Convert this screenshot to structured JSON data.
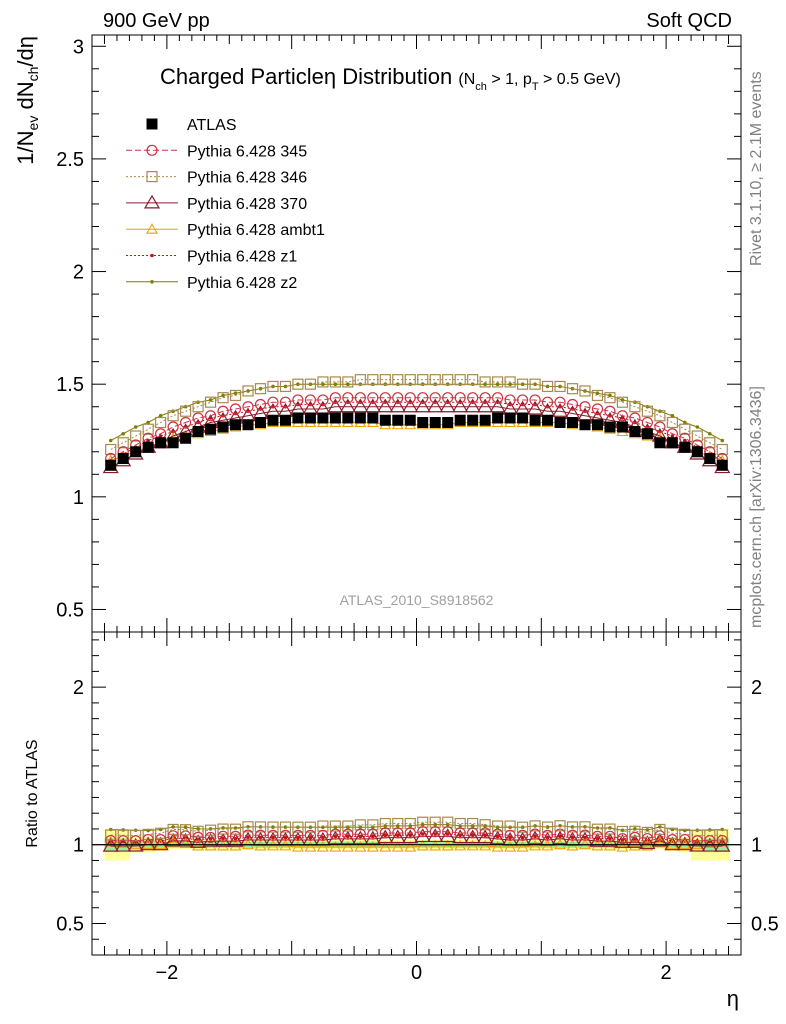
{
  "header": {
    "left": "900 GeV pp",
    "right": "Soft QCD"
  },
  "side_labels": {
    "rivet": "Rivet 3.1.10, ≥ 2.1M events",
    "mcplots": "mcplots.cern.ch [arXiv:1306.3436]"
  },
  "colors": {
    "ATLAS": "#000000",
    "p345": "#cc3344",
    "p346": "#a88a50",
    "p370": "#8b1a2a",
    "ambt1": "#f0a000",
    "z1": "#cc1111",
    "z2": "#7f7f00",
    "band_outer": "#ffff99",
    "band_inner": "#99ee99"
  },
  "chart_data": [
    {
      "type": "scatter",
      "panel": "main",
      "title": "Charged Particleη Distribution",
      "title_sub": "(N",
      "title_sub_ch": "ch",
      "title_mid": " > 1, p",
      "title_sub_T": "T",
      "title_end": " > 0.5 GeV)",
      "ylabel_parts": [
        "1/N",
        "ev",
        " dN",
        "ch",
        "/dη"
      ],
      "xlim": [
        -2.6,
        2.6
      ],
      "ylim": [
        0.4,
        3.05
      ],
      "yticks": [
        0.5,
        1,
        1.5,
        2,
        2.5,
        3
      ],
      "ytick_labels": [
        "0.5",
        "1",
        "1.5",
        "2",
        "2.5",
        "3"
      ],
      "annotation": "ATLAS_2010_S8918562",
      "legend_position": "top-left",
      "x": [
        -2.45,
        -2.35,
        -2.25,
        -2.15,
        -2.05,
        -1.95,
        -1.85,
        -1.75,
        -1.65,
        -1.55,
        -1.45,
        -1.35,
        -1.25,
        -1.15,
        -1.05,
        -0.95,
        -0.85,
        -0.75,
        -0.65,
        -0.55,
        -0.45,
        -0.35,
        -0.25,
        -0.15,
        -0.05,
        0.05,
        0.15,
        0.25,
        0.35,
        0.45,
        0.55,
        0.65,
        0.75,
        0.85,
        0.95,
        1.05,
        1.15,
        1.25,
        1.35,
        1.45,
        1.55,
        1.65,
        1.75,
        1.85,
        1.95,
        2.05,
        2.15,
        2.25,
        2.35,
        2.45
      ],
      "series": [
        {
          "name": "ATLAS",
          "marker": "filled-square",
          "line": "none",
          "color": "#000000",
          "values": [
            1.14,
            1.17,
            1.2,
            1.22,
            1.24,
            1.24,
            1.26,
            1.29,
            1.3,
            1.31,
            1.32,
            1.32,
            1.33,
            1.34,
            1.34,
            1.35,
            1.35,
            1.35,
            1.35,
            1.35,
            1.35,
            1.35,
            1.34,
            1.34,
            1.34,
            1.33,
            1.33,
            1.33,
            1.34,
            1.34,
            1.34,
            1.35,
            1.35,
            1.35,
            1.34,
            1.34,
            1.33,
            1.33,
            1.32,
            1.32,
            1.31,
            1.31,
            1.29,
            1.28,
            1.24,
            1.24,
            1.22,
            1.2,
            1.17,
            1.14
          ]
        },
        {
          "name": "Pythia 6.428 345",
          "marker": "open-circle",
          "line": "dashed",
          "color": "#cc3344",
          "values": [
            1.17,
            1.2,
            1.23,
            1.26,
            1.28,
            1.31,
            1.33,
            1.35,
            1.36,
            1.38,
            1.39,
            1.4,
            1.41,
            1.42,
            1.42,
            1.43,
            1.43,
            1.43,
            1.44,
            1.44,
            1.44,
            1.44,
            1.44,
            1.44,
            1.44,
            1.44,
            1.44,
            1.44,
            1.44,
            1.44,
            1.44,
            1.44,
            1.43,
            1.43,
            1.43,
            1.42,
            1.42,
            1.41,
            1.4,
            1.39,
            1.38,
            1.36,
            1.35,
            1.33,
            1.31,
            1.28,
            1.26,
            1.23,
            1.2,
            1.17
          ]
        },
        {
          "name": "Pythia 6.428 346",
          "marker": "open-square",
          "line": "dotted",
          "color": "#a88a50",
          "values": [
            1.21,
            1.24,
            1.27,
            1.3,
            1.33,
            1.36,
            1.38,
            1.4,
            1.42,
            1.44,
            1.45,
            1.47,
            1.48,
            1.49,
            1.49,
            1.5,
            1.5,
            1.51,
            1.51,
            1.51,
            1.52,
            1.52,
            1.52,
            1.52,
            1.52,
            1.52,
            1.52,
            1.52,
            1.52,
            1.52,
            1.51,
            1.51,
            1.51,
            1.5,
            1.5,
            1.49,
            1.49,
            1.48,
            1.47,
            1.45,
            1.44,
            1.42,
            1.4,
            1.38,
            1.36,
            1.33,
            1.3,
            1.27,
            1.24,
            1.21
          ]
        },
        {
          "name": "Pythia 6.428 370",
          "marker": "open-triangle",
          "line": "solid",
          "color": "#8b1a2a",
          "values": [
            1.13,
            1.16,
            1.19,
            1.22,
            1.24,
            1.27,
            1.29,
            1.31,
            1.33,
            1.34,
            1.35,
            1.36,
            1.37,
            1.38,
            1.38,
            1.39,
            1.39,
            1.39,
            1.4,
            1.4,
            1.4,
            1.4,
            1.4,
            1.4,
            1.4,
            1.4,
            1.4,
            1.4,
            1.4,
            1.4,
            1.4,
            1.4,
            1.39,
            1.39,
            1.39,
            1.38,
            1.38,
            1.37,
            1.36,
            1.35,
            1.34,
            1.33,
            1.31,
            1.29,
            1.27,
            1.24,
            1.22,
            1.19,
            1.16,
            1.13
          ]
        },
        {
          "name": "Pythia 6.428 ambt1",
          "marker": "small-open-triangle",
          "line": "solid",
          "color": "#f0a000",
          "values": [
            1.16,
            1.18,
            1.2,
            1.22,
            1.24,
            1.26,
            1.27,
            1.28,
            1.29,
            1.3,
            1.31,
            1.32,
            1.32,
            1.33,
            1.33,
            1.33,
            1.33,
            1.33,
            1.33,
            1.33,
            1.33,
            1.33,
            1.32,
            1.32,
            1.32,
            1.32,
            1.32,
            1.32,
            1.33,
            1.33,
            1.33,
            1.33,
            1.33,
            1.33,
            1.33,
            1.33,
            1.33,
            1.32,
            1.32,
            1.31,
            1.3,
            1.29,
            1.28,
            1.27,
            1.26,
            1.24,
            1.22,
            1.2,
            1.18,
            1.16
          ]
        },
        {
          "name": "Pythia 6.428 z1",
          "marker": "dot",
          "line": "dotted",
          "color": "#cc1111",
          "values": [
            1.16,
            1.19,
            1.22,
            1.25,
            1.27,
            1.29,
            1.31,
            1.33,
            1.35,
            1.36,
            1.37,
            1.38,
            1.39,
            1.4,
            1.4,
            1.41,
            1.41,
            1.41,
            1.42,
            1.42,
            1.42,
            1.42,
            1.42,
            1.42,
            1.42,
            1.42,
            1.42,
            1.42,
            1.42,
            1.42,
            1.42,
            1.42,
            1.41,
            1.41,
            1.41,
            1.4,
            1.4,
            1.39,
            1.38,
            1.37,
            1.36,
            1.35,
            1.33,
            1.31,
            1.29,
            1.27,
            1.25,
            1.22,
            1.19,
            1.16
          ]
        },
        {
          "name": "Pythia 6.428 z2",
          "marker": "dot",
          "line": "solid",
          "color": "#7f7f00",
          "values": [
            1.25,
            1.28,
            1.31,
            1.33,
            1.36,
            1.38,
            1.4,
            1.42,
            1.43,
            1.45,
            1.46,
            1.47,
            1.48,
            1.49,
            1.49,
            1.5,
            1.5,
            1.5,
            1.5,
            1.5,
            1.5,
            1.5,
            1.5,
            1.5,
            1.5,
            1.5,
            1.5,
            1.5,
            1.5,
            1.5,
            1.5,
            1.5,
            1.5,
            1.5,
            1.5,
            1.49,
            1.49,
            1.48,
            1.47,
            1.46,
            1.45,
            1.43,
            1.42,
            1.4,
            1.38,
            1.36,
            1.33,
            1.31,
            1.28,
            1.25
          ]
        }
      ]
    },
    {
      "type": "line",
      "panel": "ratio",
      "ylabel": "Ratio to ATLAS",
      "xlabel": "η",
      "xlim": [
        -2.6,
        2.6
      ],
      "ylim": [
        0.3,
        2.35
      ],
      "xticks": [
        -2,
        0,
        2
      ],
      "xtick_labels": [
        "−2",
        "0",
        "2"
      ],
      "yticks": [
        0.5,
        1,
        2
      ],
      "ytick_labels": [
        "0.5",
        "1",
        "2"
      ],
      "band_outer_halfwidth": [
        0.1,
        0.1,
        0.05,
        0.05,
        0.04,
        0.03,
        0.03,
        0.03,
        0.03,
        0.03,
        0.03,
        0.03,
        0.03,
        0.03,
        0.03,
        0.03,
        0.03,
        0.03,
        0.03,
        0.03,
        0.03,
        0.03,
        0.03,
        0.03,
        0.03,
        0.03,
        0.03,
        0.03,
        0.03,
        0.03,
        0.03,
        0.03,
        0.03,
        0.03,
        0.03,
        0.03,
        0.03,
        0.03,
        0.03,
        0.03,
        0.03,
        0.03,
        0.03,
        0.03,
        0.03,
        0.04,
        0.05,
        0.1,
        0.1,
        0.1
      ],
      "band_inner_halfwidth": [
        0.04,
        0.04,
        0.03,
        0.025,
        0.02,
        0.02,
        0.02,
        0.02,
        0.02,
        0.02,
        0.02,
        0.02,
        0.02,
        0.02,
        0.02,
        0.02,
        0.02,
        0.02,
        0.02,
        0.02,
        0.02,
        0.02,
        0.02,
        0.02,
        0.02,
        0.02,
        0.02,
        0.02,
        0.02,
        0.02,
        0.02,
        0.02,
        0.02,
        0.02,
        0.02,
        0.02,
        0.02,
        0.02,
        0.02,
        0.02,
        0.02,
        0.02,
        0.02,
        0.02,
        0.02,
        0.02,
        0.025,
        0.03,
        0.04,
        0.04
      ]
    }
  ]
}
